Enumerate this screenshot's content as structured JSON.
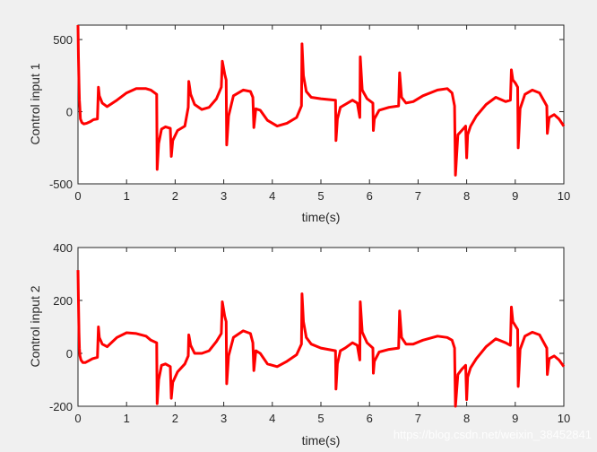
{
  "chart_data": [
    {
      "type": "line",
      "title": "",
      "xlabel": "time(s)",
      "ylabel": "Control input 1",
      "xlim": [
        0,
        10
      ],
      "ylim": [
        -500,
        600
      ],
      "xticks": [
        0,
        1,
        2,
        3,
        4,
        5,
        6,
        7,
        8,
        9,
        10
      ],
      "yticks": [
        -500,
        0,
        500
      ],
      "grid": false,
      "color": "#ff0000",
      "series": [
        {
          "x": [
            0,
            0.01,
            0.02,
            0.03,
            0.04,
            0.05,
            0.08,
            0.12,
            0.18,
            0.25,
            0.32,
            0.4,
            0.42,
            0.44,
            0.5,
            0.6,
            0.8,
            1.0,
            1.2,
            1.4,
            1.5,
            1.62,
            1.63,
            1.66,
            1.72,
            1.8,
            1.9,
            1.92,
            1.95,
            2.05,
            2.2,
            2.27,
            2.28,
            2.32,
            2.4,
            2.55,
            2.7,
            2.85,
            2.95,
            2.97,
            3.02,
            3.05,
            3.06,
            3.1,
            3.2,
            3.4,
            3.55,
            3.6,
            3.62,
            3.66,
            3.75,
            3.9,
            4.1,
            4.3,
            4.5,
            4.6,
            4.61,
            4.64,
            4.7,
            4.8,
            5.0,
            5.3,
            5.31,
            5.34,
            5.4,
            5.5,
            5.65,
            5.75,
            5.8,
            5.81,
            5.85,
            5.95,
            6.07,
            6.08,
            6.1,
            6.2,
            6.4,
            6.6,
            6.62,
            6.66,
            6.75,
            6.9,
            7.1,
            7.4,
            7.6,
            7.7,
            7.75,
            7.77,
            7.82,
            7.9,
            7.98,
            8.0,
            8.02,
            8.08,
            8.2,
            8.4,
            8.6,
            8.8,
            8.9,
            8.92,
            8.95,
            9.0,
            9.05,
            9.06,
            9.1,
            9.2,
            9.35,
            9.5,
            9.65,
            9.66,
            9.7,
            9.8,
            9.9,
            10.0
          ],
          "y": [
            600,
            380,
            200,
            80,
            20,
            -50,
            -75,
            -85,
            -80,
            -70,
            -55,
            -50,
            170,
            110,
            60,
            35,
            80,
            130,
            160,
            160,
            150,
            120,
            -400,
            -220,
            -120,
            -105,
            -115,
            -310,
            -200,
            -130,
            -100,
            30,
            210,
            120,
            50,
            15,
            30,
            90,
            170,
            350,
            260,
            220,
            -230,
            -30,
            110,
            150,
            140,
            100,
            -110,
            20,
            10,
            -60,
            -100,
            -80,
            -40,
            40,
            470,
            250,
            140,
            100,
            90,
            80,
            -200,
            -50,
            30,
            50,
            80,
            60,
            -40,
            380,
            150,
            90,
            60,
            -130,
            -50,
            10,
            30,
            40,
            270,
            100,
            60,
            70,
            110,
            150,
            160,
            130,
            40,
            -440,
            -160,
            -130,
            -100,
            -320,
            -160,
            -100,
            -30,
            50,
            100,
            70,
            80,
            290,
            220,
            200,
            170,
            -250,
            20,
            120,
            150,
            130,
            40,
            -150,
            -40,
            -20,
            -50,
            -100
          ]
        }
      ]
    },
    {
      "type": "line",
      "title": "",
      "xlabel": "time(s)",
      "ylabel": "Control input 2",
      "xlim": [
        0,
        10
      ],
      "ylim": [
        -200,
        400
      ],
      "xticks": [
        0,
        1,
        2,
        3,
        4,
        5,
        6,
        7,
        8,
        9,
        10
      ],
      "yticks": [
        -200,
        0,
        200,
        400
      ],
      "grid": false,
      "color": "#ff0000",
      "series": [
        {
          "x": [
            0,
            0.01,
            0.02,
            0.03,
            0.04,
            0.06,
            0.1,
            0.15,
            0.22,
            0.3,
            0.4,
            0.42,
            0.44,
            0.5,
            0.6,
            0.8,
            1.0,
            1.2,
            1.4,
            1.5,
            1.62,
            1.63,
            1.66,
            1.72,
            1.8,
            1.9,
            1.92,
            1.95,
            2.05,
            2.2,
            2.27,
            2.28,
            2.32,
            2.4,
            2.55,
            2.7,
            2.85,
            2.95,
            2.97,
            3.02,
            3.05,
            3.06,
            3.1,
            3.2,
            3.4,
            3.55,
            3.6,
            3.62,
            3.66,
            3.75,
            3.9,
            4.1,
            4.3,
            4.5,
            4.6,
            4.61,
            4.64,
            4.7,
            4.8,
            5.0,
            5.3,
            5.31,
            5.34,
            5.4,
            5.5,
            5.65,
            5.75,
            5.8,
            5.81,
            5.85,
            5.95,
            6.07,
            6.08,
            6.1,
            6.2,
            6.4,
            6.6,
            6.62,
            6.66,
            6.75,
            6.9,
            7.1,
            7.4,
            7.6,
            7.7,
            7.75,
            7.77,
            7.82,
            7.9,
            7.98,
            8.0,
            8.02,
            8.08,
            8.2,
            8.4,
            8.6,
            8.8,
            8.9,
            8.92,
            8.95,
            9.0,
            9.05,
            9.06,
            9.1,
            9.2,
            9.35,
            9.5,
            9.65,
            9.66,
            9.7,
            9.8,
            9.9,
            10.0
          ],
          "y": [
            315,
            200,
            80,
            20,
            -10,
            -25,
            -35,
            -35,
            -28,
            -20,
            -15,
            100,
            60,
            35,
            25,
            60,
            78,
            75,
            65,
            50,
            40,
            -190,
            -100,
            -45,
            -40,
            -50,
            -170,
            -110,
            -70,
            -40,
            -10,
            70,
            30,
            0,
            0,
            10,
            45,
            75,
            195,
            140,
            120,
            -115,
            -10,
            60,
            85,
            75,
            40,
            -65,
            10,
            0,
            -40,
            -50,
            -30,
            -5,
            35,
            225,
            120,
            60,
            35,
            20,
            10,
            -135,
            -40,
            10,
            20,
            40,
            30,
            -25,
            195,
            80,
            40,
            20,
            -75,
            -30,
            5,
            15,
            20,
            160,
            60,
            35,
            35,
            50,
            65,
            60,
            50,
            20,
            -200,
            -80,
            -60,
            -45,
            -175,
            -90,
            -55,
            -20,
            25,
            55,
            40,
            30,
            175,
            120,
            105,
            90,
            -125,
            15,
            65,
            80,
            70,
            20,
            -80,
            -20,
            -10,
            -25,
            -50
          ]
        }
      ]
    }
  ],
  "watermark": {
    "text": "https://blog.csdn.net/weixin_38452841"
  }
}
